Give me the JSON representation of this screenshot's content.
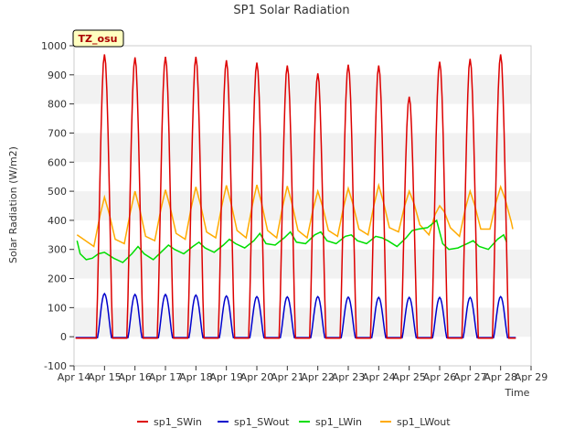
{
  "chart_data": {
    "type": "line",
    "title": "SP1 Solar Radiation",
    "xlabel": "Time",
    "ylabel": "Solar Radiation (W/m2)",
    "badge": "TZ_osu",
    "xlim": [
      14,
      29
    ],
    "ylim": [
      -100,
      1000
    ],
    "x_ticks": [
      14,
      15,
      16,
      17,
      18,
      19,
      20,
      21,
      22,
      23,
      24,
      25,
      26,
      27,
      28,
      29
    ],
    "x_tick_labels": [
      "Apr 14",
      "Apr 15",
      "Apr 16",
      "Apr 17",
      "Apr 18",
      "Apr 19",
      "Apr 20",
      "Apr 21",
      "Apr 22",
      "Apr 23",
      "Apr 24",
      "Apr 25",
      "Apr 26",
      "Apr 27",
      "Apr 28",
      "Apr 29"
    ],
    "y_ticks": [
      -100,
      0,
      100,
      200,
      300,
      400,
      500,
      600,
      700,
      800,
      900,
      1000
    ],
    "y_tick_labels": [
      "-100",
      "0",
      "100",
      "200",
      "300",
      "400",
      "500",
      "600",
      "700",
      "800",
      "900",
      "1000"
    ],
    "grid": "horizontal alternating bands",
    "legend_position": "bottom-center",
    "series": [
      {
        "name": "sp1_SWin",
        "color": "#dd0000",
        "days": [
          15,
          16,
          17,
          18,
          19,
          20,
          21,
          22,
          23,
          24,
          25,
          26,
          27,
          28
        ],
        "peaks": [
          970,
          960,
          962,
          962,
          950,
          942,
          932,
          905,
          935,
          932,
          825,
          945,
          955,
          970
        ]
      },
      {
        "name": "sp1_SWout",
        "color": "#0000cc",
        "days": [
          15,
          16,
          17,
          18,
          19,
          20,
          21,
          22,
          23,
          24,
          25,
          26,
          27,
          28
        ],
        "peaks": [
          148,
          145,
          145,
          143,
          140,
          138,
          137,
          138,
          136,
          135,
          135,
          135,
          135,
          138
        ]
      },
      {
        "name": "sp1_LWin",
        "color": "#00dd00",
        "x": [
          14.1,
          14.2,
          14.4,
          14.6,
          14.8,
          15.0,
          15.3,
          15.6,
          15.9,
          16.1,
          16.3,
          16.6,
          16.9,
          17.1,
          17.3,
          17.6,
          17.9,
          18.1,
          18.3,
          18.6,
          18.9,
          19.1,
          19.3,
          19.6,
          19.9,
          20.1,
          20.3,
          20.6,
          20.9,
          21.1,
          21.3,
          21.6,
          21.9,
          22.1,
          22.3,
          22.6,
          22.9,
          23.1,
          23.3,
          23.6,
          23.9,
          24.1,
          24.3,
          24.6,
          24.9,
          25.1,
          25.3,
          25.6,
          25.9,
          26.1,
          26.3,
          26.6,
          26.9,
          27.1,
          27.3,
          27.6,
          27.9,
          28.1,
          28.2
        ],
        "y": [
          330,
          285,
          265,
          270,
          285,
          290,
          270,
          255,
          285,
          310,
          285,
          265,
          295,
          315,
          300,
          285,
          310,
          325,
          305,
          290,
          315,
          335,
          320,
          305,
          330,
          355,
          320,
          315,
          340,
          360,
          325,
          320,
          350,
          360,
          330,
          320,
          345,
          350,
          330,
          320,
          345,
          340,
          330,
          310,
          340,
          365,
          370,
          375,
          400,
          320,
          300,
          305,
          320,
          330,
          310,
          300,
          335,
          350,
          325
        ]
      },
      {
        "name": "sp1_LWout",
        "color": "#ffaa00",
        "days": [
          15,
          16,
          17,
          18,
          19,
          20,
          21,
          22,
          23,
          24,
          25,
          26,
          27,
          28
        ],
        "peaks": [
          480,
          500,
          505,
          515,
          520,
          522,
          518,
          500,
          510,
          520,
          500,
          450,
          500,
          515
        ],
        "mins": [
          310,
          320,
          330,
          335,
          340,
          340,
          340,
          340,
          345,
          350,
          360,
          350,
          345,
          370
        ]
      }
    ]
  }
}
